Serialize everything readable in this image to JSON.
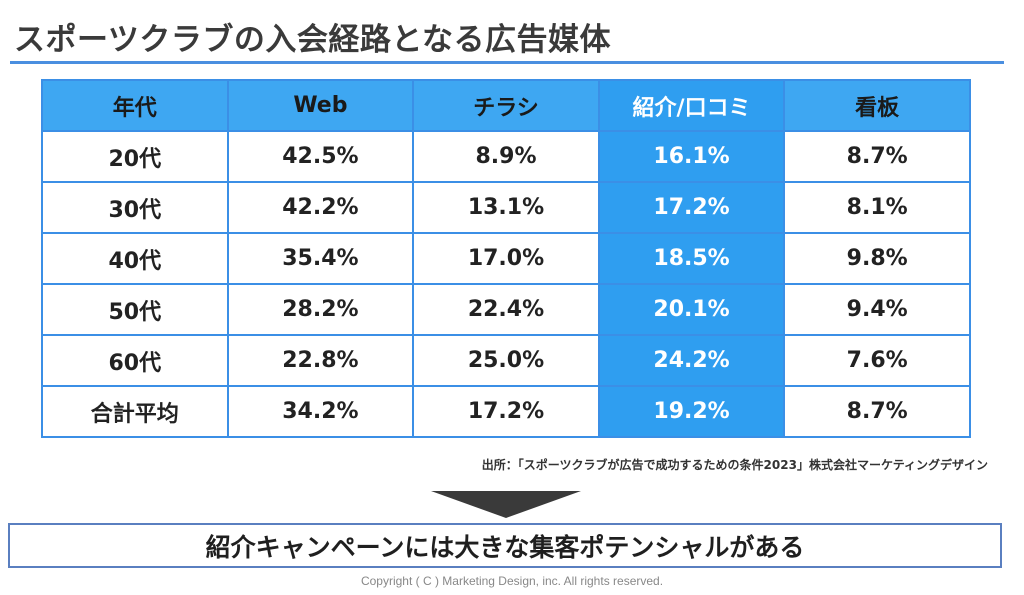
{
  "title": "スポーツクラブの入会経路となる広告媒体",
  "table": {
    "headers": [
      "年代",
      "Web",
      "チラシ",
      "紹介/口コミ",
      "看板"
    ],
    "highlight_color": "#2f9ef0",
    "rows": [
      [
        "20代",
        "42.5%",
        "8.9%",
        "16.1%",
        "8.7%"
      ],
      [
        "30代",
        "42.2%",
        "13.1%",
        "17.2%",
        "8.1%"
      ],
      [
        "40代",
        "35.4%",
        "17.0%",
        "18.5%",
        "9.8%"
      ],
      [
        "50代",
        "28.2%",
        "22.4%",
        "20.1%",
        "9.4%"
      ],
      [
        "60代",
        "22.8%",
        "25.0%",
        "24.2%",
        "7.6%"
      ],
      [
        "合計平均",
        "34.2%",
        "17.2%",
        "19.2%",
        "8.7%"
      ]
    ]
  },
  "source": "出所：「スポーツクラブが広告で成功するための条件2023」株式会社マーケティングデザイン",
  "conclusion": "紹介キャンペーンには大きな集客ポテンシャルがある",
  "copyright": "Copyright ( C ) Marketing Design, inc. All rights reserved."
}
